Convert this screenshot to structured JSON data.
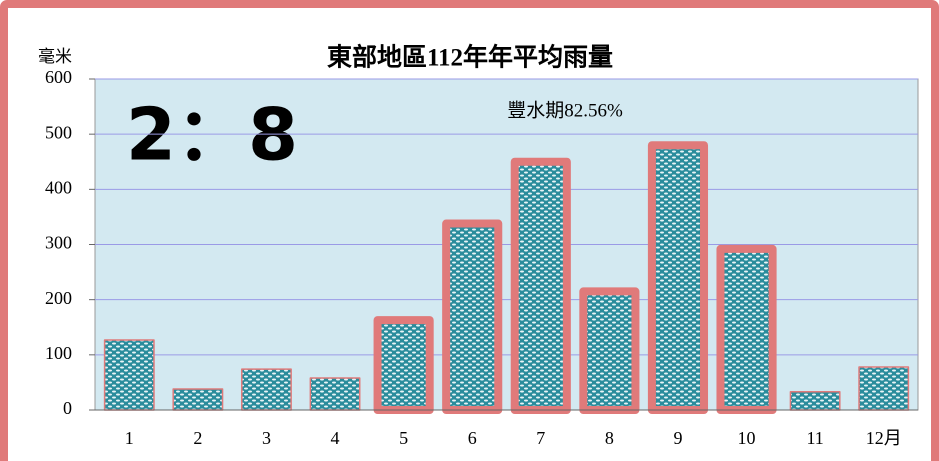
{
  "chart_data": {
    "type": "bar",
    "title": "東部地區112年年平均雨量",
    "ylabel": "毫米",
    "annotations": [
      "2：8",
      "豐水期82.56%"
    ],
    "categories": [
      "1",
      "2",
      "3",
      "4",
      "5",
      "6",
      "7",
      "8",
      "9",
      "10",
      "11",
      "12月"
    ],
    "values": [
      127,
      38,
      74,
      58,
      163,
      338,
      450,
      215,
      480,
      292,
      33,
      78
    ],
    "highlighted": [
      false,
      false,
      false,
      false,
      true,
      true,
      true,
      true,
      true,
      true,
      false,
      false
    ],
    "color": "#2a8c9c",
    "edge_color": "#e07a7a",
    "ylim": [
      0,
      600
    ],
    "yticks": [
      0,
      100,
      200,
      300,
      400,
      500,
      600
    ],
    "grid": true
  }
}
